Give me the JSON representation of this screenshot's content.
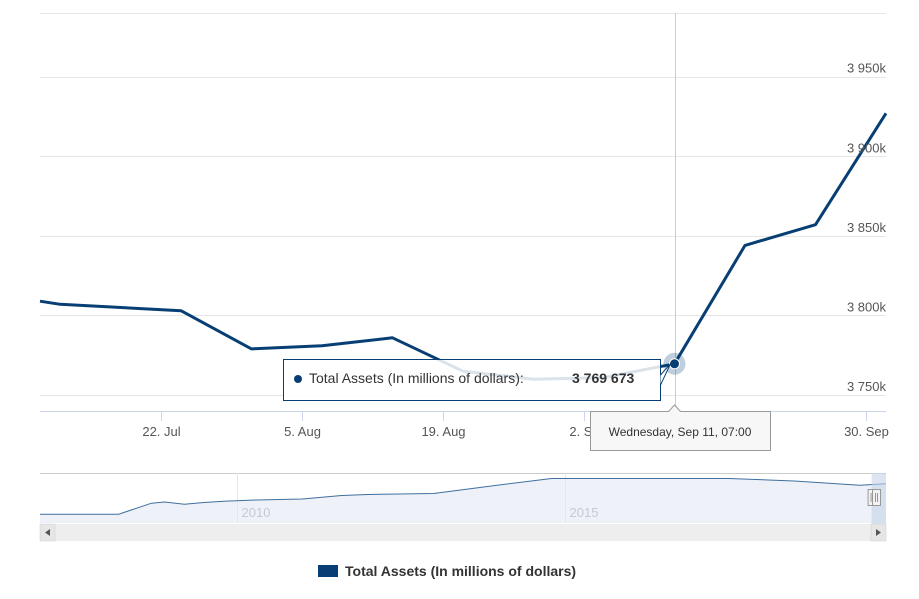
{
  "colors": {
    "series": "#073f74",
    "grid": "#e6e6e6",
    "navigator_fill": "#e3eaf3",
    "navigator_line": "#3f6f9f",
    "scrollbar_bg": "#eeeeee",
    "scrollbar_button": "#e6e6e6"
  },
  "chart_data": {
    "type": "line",
    "legend": {
      "label": "Total Assets (In millions of dollars)",
      "placement": "bottom-center"
    },
    "series": [
      {
        "name": "Total Assets (In millions of dollars)",
        "x": [
          "2019-07-10",
          "2019-07-12",
          "2019-07-24",
          "2019-07-31",
          "2019-08-07",
          "2019-08-14",
          "2019-08-21",
          "2019-08-28",
          "2019-09-04",
          "2019-09-11",
          "2019-09-18",
          "2019-09-25",
          "2019-10-02"
        ],
        "values": [
          3809,
          3807,
          3803,
          3779,
          3781,
          3786,
          3765,
          3760,
          3761,
          3769.673,
          3844,
          3857,
          3927
        ]
      }
    ],
    "x_ticks": [
      "22. Jul",
      "5. Aug",
      "19. Aug",
      "2. Se",
      "30. Sep"
    ],
    "x_tick_dates": [
      "2019-07-22",
      "2019-08-05",
      "2019-08-19",
      "2019-09-02",
      "2019-09-30"
    ],
    "y_ticks": [
      "3 750k",
      "3 800k",
      "3 850k",
      "3 900k",
      "3 950k"
    ],
    "y_tick_values": [
      3750,
      3800,
      3850,
      3900,
      3950
    ],
    "ylim": [
      3740,
      3990
    ],
    "xlim": [
      "2019-07-10",
      "2019-10-02"
    ],
    "grid": true,
    "tooltip": {
      "series_label": "Total Assets (In millions of dollars): ",
      "value": "3 769 673",
      "date": "Wednesday, Sep 11, 07:00",
      "point_x": "2019-09-11",
      "point_y": 3769.673
    },
    "navigator": {
      "labels": [
        "2010",
        "2015"
      ],
      "label_years": [
        2010,
        2015
      ],
      "xlim": [
        2007.0,
        2019.9
      ],
      "ylim": [
        0,
        5000
      ],
      "series_x": [
        2007.0,
        2008.2,
        2008.7,
        2008.9,
        2009.2,
        2009.5,
        2009.8,
        2010.3,
        2011.0,
        2011.6,
        2012.0,
        2013.0,
        2014.0,
        2014.8,
        2016.0,
        2017.5,
        2018.5,
        2019.5,
        2019.9
      ],
      "series_y": [
        870,
        880,
        1980,
        2100,
        1880,
        2050,
        2180,
        2300,
        2400,
        2750,
        2850,
        2950,
        3800,
        4450,
        4450,
        4450,
        4200,
        3780,
        3930
      ]
    }
  }
}
